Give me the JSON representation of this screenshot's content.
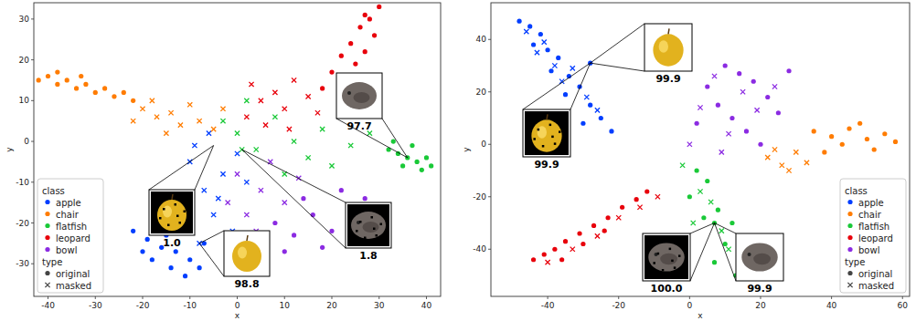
{
  "chart_data": [
    {
      "type": "scatter",
      "x_label": "x",
      "y_label": "y",
      "xlim": [
        -43,
        43
      ],
      "ylim": [
        -38,
        34
      ],
      "xticks": [
        -40,
        -30,
        -20,
        -10,
        0,
        10,
        20,
        30,
        40
      ],
      "yticks": [
        -30,
        -20,
        -10,
        0,
        10,
        20,
        30
      ],
      "grid": false,
      "legend": "lower left",
      "legend_groups": [
        {
          "title": "class",
          "entries": [
            "apple",
            "chair",
            "flatfish",
            "leopard",
            "bowl"
          ]
        },
        {
          "title": "type",
          "entries": [
            "original",
            "masked"
          ]
        }
      ],
      "series": [
        {
          "name": "apple",
          "point_type": "original",
          "color": "#023eff",
          "marker": "circle",
          "x": [
            -22,
            -19,
            -16,
            -13,
            -10,
            -8,
            -18,
            -14,
            -11,
            -20,
            -7,
            -15
          ],
          "values": [
            -22,
            -24,
            -26,
            -27,
            -29,
            -31,
            -29,
            -31,
            -33,
            -27,
            -25,
            -23
          ]
        },
        {
          "name": "apple",
          "point_type": "masked",
          "color": "#023eff",
          "marker": "x",
          "x": [
            -10,
            -7,
            -5,
            -3,
            -1,
            -8,
            0,
            -4,
            2,
            -12,
            -6,
            -9
          ],
          "values": [
            -5,
            -12,
            -18,
            -8,
            -22,
            -25,
            -3,
            -14,
            -10,
            -18,
            2,
            -1
          ]
        },
        {
          "name": "chair",
          "point_type": "original",
          "color": "#ff7c00",
          "marker": "circle",
          "x": [
            -42,
            -40,
            -38,
            -36,
            -34,
            -32,
            -30,
            -28,
            -26,
            -24,
            -38,
            -33,
            -22
          ],
          "values": [
            15,
            16,
            14,
            15,
            13,
            14,
            12,
            13,
            11,
            12,
            17,
            16,
            10
          ]
        },
        {
          "name": "chair",
          "point_type": "masked",
          "color": "#ff7c00",
          "marker": "x",
          "x": [
            -20,
            -17,
            -14,
            -12,
            -10,
            -8,
            -5,
            -15,
            -3,
            -18,
            -22
          ],
          "values": [
            8,
            6,
            7,
            4,
            9,
            5,
            3,
            2,
            8,
            10,
            5
          ]
        },
        {
          "name": "flatfish",
          "point_type": "original",
          "color": "#1ac938",
          "marker": "circle",
          "x": [
            32,
            34,
            36,
            38,
            40,
            41,
            35,
            39,
            33,
            37
          ],
          "values": [
            -2,
            -3,
            -4,
            -5,
            -4,
            -6,
            -6,
            -7,
            0,
            -1
          ]
        },
        {
          "name": "flatfish",
          "point_type": "masked",
          "color": "#1ac938",
          "marker": "x",
          "x": [
            -3,
            0,
            4,
            8,
            12,
            15,
            20,
            24,
            28,
            2,
            18,
            10,
            1
          ],
          "values": [
            5,
            2,
            -2,
            6,
            0,
            -4,
            -6,
            -1,
            2,
            10,
            3,
            -8,
            -2
          ]
        },
        {
          "name": "leopard",
          "point_type": "original",
          "color": "#e8000b",
          "marker": "circle",
          "x": [
            30,
            28,
            26,
            29,
            24,
            27,
            22,
            25,
            20,
            23,
            18,
            27
          ],
          "values": [
            33,
            30,
            28,
            26,
            24,
            22,
            21,
            19,
            17,
            15,
            13,
            31
          ]
        },
        {
          "name": "leopard",
          "point_type": "masked",
          "color": "#e8000b",
          "marker": "x",
          "x": [
            2,
            5,
            8,
            10,
            12,
            15,
            6,
            17,
            3,
            11
          ],
          "values": [
            6,
            10,
            12,
            8,
            15,
            11,
            4,
            7,
            14,
            3
          ]
        },
        {
          "name": "bowl",
          "point_type": "original",
          "color": "#8b2be2",
          "marker": "circle",
          "x": [
            8,
            12,
            16,
            20,
            24,
            27,
            10,
            18,
            22,
            14,
            26
          ],
          "values": [
            -20,
            -23,
            -18,
            -22,
            -19,
            -14,
            -27,
            -26,
            -12,
            -14,
            -25
          ]
        },
        {
          "name": "bowl",
          "point_type": "masked",
          "color": "#8b2be2",
          "marker": "x",
          "x": [
            -2,
            2,
            5,
            7,
            10,
            13,
            0,
            4
          ],
          "values": [
            -15,
            -18,
            -12,
            -5,
            -15,
            -9,
            -8,
            -22
          ]
        }
      ],
      "annotations": [
        {
          "label": "97.7",
          "x": 36,
          "y": -4,
          "class": "flatfish",
          "point_type": "original"
        },
        {
          "label": "1.0",
          "x": -5,
          "y": -1,
          "class": "apple",
          "point_type": "masked"
        },
        {
          "label": "1.8",
          "x": 1,
          "y": -2,
          "class": "flatfish",
          "point_type": "masked"
        },
        {
          "label": "98.8",
          "x": -8,
          "y": -25,
          "class": "apple",
          "point_type": "original"
        }
      ]
    },
    {
      "type": "scatter",
      "x_label": "x",
      "y_label": "y",
      "xlim": [
        -56,
        62
      ],
      "ylim": [
        -58,
        54
      ],
      "xticks": [
        -40,
        -20,
        0,
        20,
        40,
        60
      ],
      "yticks": [
        -40,
        -20,
        0,
        20,
        40
      ],
      "grid": false,
      "legend": "lower right",
      "legend_groups": [
        {
          "title": "class",
          "entries": [
            "apple",
            "chair",
            "flatfish",
            "leopard",
            "bowl"
          ]
        },
        {
          "title": "type",
          "entries": [
            "original",
            "masked"
          ]
        }
      ],
      "series": [
        {
          "name": "apple",
          "point_type": "original",
          "color": "#023eff",
          "marker": "circle",
          "x": [
            -48,
            -45,
            -42,
            -44,
            -40,
            -37,
            -39,
            -34,
            -31,
            -35,
            -28,
            -25,
            -30,
            -22,
            -28
          ],
          "values": [
            47,
            45,
            42,
            38,
            36,
            33,
            28,
            26,
            22,
            19,
            15,
            10,
            8,
            5,
            31
          ]
        },
        {
          "name": "apple",
          "point_type": "masked",
          "color": "#023eff",
          "marker": "x",
          "x": [
            -46,
            -41,
            -38,
            -33,
            -29,
            -26,
            -36,
            -43
          ],
          "values": [
            43,
            39,
            30,
            29,
            18,
            13,
            24,
            35
          ]
        },
        {
          "name": "chair",
          "point_type": "original",
          "color": "#ff7c00",
          "marker": "circle",
          "x": [
            35,
            40,
            45,
            50,
            55,
            43,
            48,
            52,
            58,
            38
          ],
          "values": [
            5,
            3,
            6,
            2,
            4,
            0,
            8,
            -2,
            1,
            -3
          ]
        },
        {
          "name": "chair",
          "point_type": "masked",
          "color": "#ff7c00",
          "marker": "x",
          "x": [
            22,
            26,
            30,
            33,
            28,
            24
          ],
          "values": [
            -5,
            -8,
            -3,
            -7,
            -10,
            -2
          ]
        },
        {
          "name": "flatfish",
          "point_type": "original",
          "color": "#1ac938",
          "marker": "circle",
          "x": [
            2,
            5,
            0,
            8,
            12,
            4,
            10,
            15,
            7,
            13,
            18,
            7
          ],
          "values": [
            -10,
            -14,
            -20,
            -25,
            -30,
            -28,
            -38,
            -42,
            -45,
            -50,
            -35,
            -30
          ]
        },
        {
          "name": "flatfish",
          "point_type": "masked",
          "color": "#1ac938",
          "marker": "x",
          "x": [
            -2,
            3,
            6,
            9,
            14,
            11,
            1
          ],
          "values": [
            -8,
            -18,
            -22,
            -33,
            -46,
            -40,
            -30
          ]
        },
        {
          "name": "leopard",
          "point_type": "original",
          "color": "#e8000b",
          "marker": "circle",
          "x": [
            -44,
            -41,
            -38,
            -35,
            -31,
            -27,
            -23,
            -19,
            -15,
            -12,
            -36,
            -30,
            -24
          ],
          "values": [
            -44,
            -42,
            -40,
            -37,
            -34,
            -31,
            -28,
            -24,
            -21,
            -18,
            -44,
            -38,
            -33
          ]
        },
        {
          "name": "leopard",
          "point_type": "masked",
          "color": "#e8000b",
          "marker": "x",
          "x": [
            -40,
            -33,
            -26,
            -20,
            -14,
            -9
          ],
          "values": [
            -45,
            -40,
            -35,
            -28,
            -24,
            -20
          ]
        },
        {
          "name": "bowl",
          "point_type": "original",
          "color": "#8b2be2",
          "marker": "circle",
          "x": [
            10,
            14,
            5,
            18,
            8,
            22,
            12,
            25,
            2,
            16,
            28,
            20
          ],
          "values": [
            30,
            27,
            22,
            24,
            15,
            18,
            10,
            12,
            8,
            5,
            28,
            0
          ]
        },
        {
          "name": "bowl",
          "point_type": "masked",
          "color": "#8b2be2",
          "marker": "x",
          "x": [
            7,
            15,
            3,
            19,
            11,
            24,
            9,
            0
          ],
          "values": [
            26,
            20,
            14,
            13,
            4,
            22,
            -3,
            0
          ]
        }
      ],
      "annotations": [
        {
          "label": "99.9",
          "x": -28,
          "y": 31,
          "class": "apple",
          "point_type": "original"
        },
        {
          "label": "99.9",
          "x": -28,
          "y": 31,
          "class": "apple",
          "point_type": "masked"
        },
        {
          "label": "100.0",
          "x": 7,
          "y": -30,
          "class": "flatfish",
          "point_type": "masked"
        },
        {
          "label": "99.9",
          "x": 7,
          "y": -30,
          "class": "flatfish",
          "point_type": "original"
        }
      ]
    }
  ]
}
